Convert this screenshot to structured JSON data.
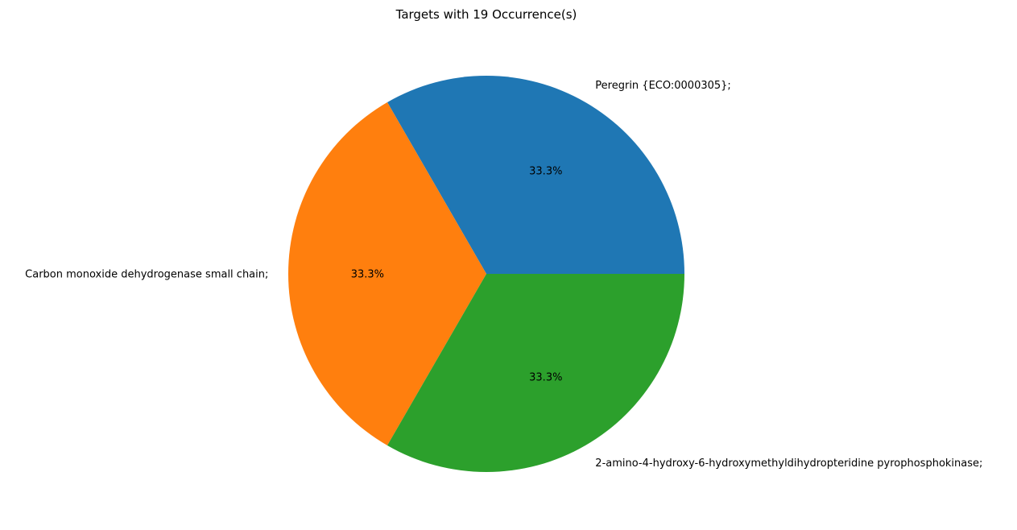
{
  "chart_data": {
    "type": "pie",
    "title": "Targets with 19 Occurrence(s)",
    "slices": [
      {
        "label": "Peregrin {ECO:0000305};",
        "value": 1,
        "percent_label": "33.3%",
        "color": "#1f77b4"
      },
      {
        "label": "Carbon monoxide dehydrogenase small chain;",
        "value": 1,
        "percent_label": "33.3%",
        "color": "#ff7f0e"
      },
      {
        "label": "2-amino-4-hydroxy-6-hydroxymethyldihydropteridine pyrophosphokinase;",
        "value": 1,
        "percent_label": "33.3%",
        "color": "#2ca02c"
      }
    ],
    "start_angle_deg": 0,
    "direction": "counterclockwise"
  }
}
